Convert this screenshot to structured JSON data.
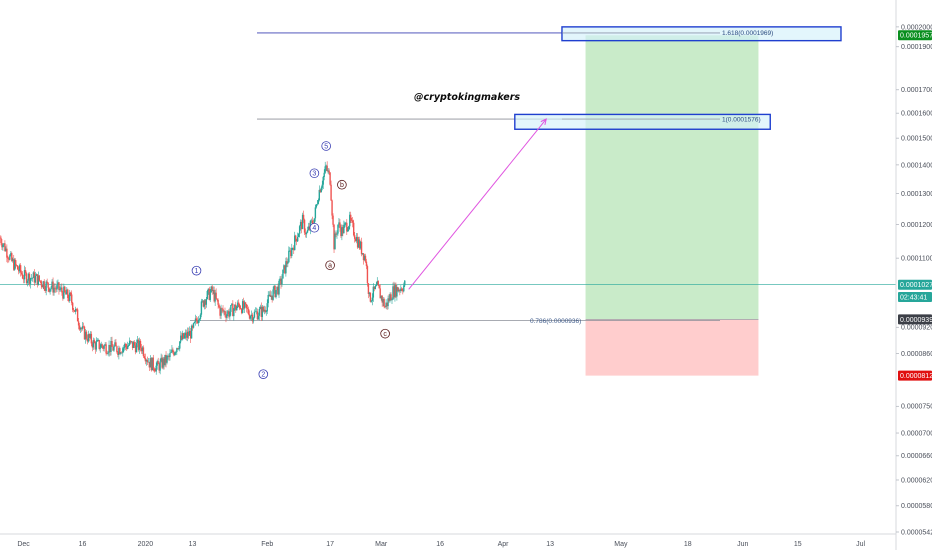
{
  "watermark": "@cryptokingmakers",
  "colors": {
    "up": "#26a69a",
    "down": "#ef5350",
    "profit_zone": "#c9ebc9",
    "loss_zone": "#ffcdcd",
    "fib_box_border": "#1f3fcf",
    "fib_box_fill": "#d4f1fb",
    "arrow": "#e055e0",
    "wave_impulse": "#3a3fb3",
    "wave_corrective": "#5a1a1a",
    "badge_green": "#0a8f1f",
    "badge_teal": "#26a69a",
    "badge_dark": "#3c3f47",
    "badge_red": "#e01010",
    "axis_line": "#d7d9de"
  },
  "chart_data": {
    "type": "candlestick",
    "y_scale": "log",
    "y_range": [
      5.42e-05,
      0.00021
    ],
    "x_range": [
      "2019-11-25",
      "2020-07-10"
    ],
    "price_ticks": [
      "0.0002000",
      "0.0001900",
      "0.0001700",
      "0.0001600",
      "0.0001500",
      "0.0001400",
      "0.0001300",
      "0.0001200",
      "0.0001100",
      "0.0000920",
      "0.0000860",
      "0.0000750",
      "0.0000700",
      "0.0000660",
      "0.0000620",
      "0.0000580",
      "0.0000542"
    ],
    "time_ticks": [
      {
        "label": "Dec",
        "date": "2019-12-01"
      },
      {
        "label": "16",
        "date": "2019-12-16"
      },
      {
        "label": "2020",
        "date": "2020-01-01"
      },
      {
        "label": "13",
        "date": "2020-01-13"
      },
      {
        "label": "Feb",
        "date": "2020-02-01"
      },
      {
        "label": "17",
        "date": "2020-02-17"
      },
      {
        "label": "Mar",
        "date": "2020-03-01"
      },
      {
        "label": "16",
        "date": "2020-03-16"
      },
      {
        "label": "Apr",
        "date": "2020-04-01"
      },
      {
        "label": "13",
        "date": "2020-04-13"
      },
      {
        "label": "May",
        "date": "2020-05-01"
      },
      {
        "label": "18",
        "date": "2020-05-18"
      },
      {
        "label": "Jun",
        "date": "2020-06-01"
      },
      {
        "label": "15",
        "date": "2020-06-15"
      },
      {
        "label": "Jul",
        "date": "2020-07-01"
      }
    ],
    "price_path": [
      [
        "2019-11-25",
        0.000116
      ],
      [
        "2019-11-28",
        0.000109
      ],
      [
        "2019-12-01",
        0.000105
      ],
      [
        "2019-12-04",
        0.0001045
      ],
      [
        "2019-12-07",
        0.0001025
      ],
      [
        "2019-12-10",
        0.0001015
      ],
      [
        "2019-12-13",
        9.9e-05
      ],
      [
        "2019-12-16",
        9.1e-05
      ],
      [
        "2019-12-19",
        8.8e-05
      ],
      [
        "2019-12-22",
        8.75e-05
      ],
      [
        "2019-12-25",
        8.7e-05
      ],
      [
        "2019-12-28",
        8.8e-05
      ],
      [
        "2019-12-31",
        8.75e-05
      ],
      [
        "2020-01-02",
        8.4e-05
      ],
      [
        "2020-01-04",
        8.3e-05
      ],
      [
        "2020-01-07",
        8.5e-05
      ],
      [
        "2020-01-10",
        8.9e-05
      ],
      [
        "2020-01-13",
        9.1e-05
      ],
      [
        "2020-01-16",
        9.9e-05
      ],
      [
        "2020-01-18",
        0.000101
      ],
      [
        "2020-01-20",
        9.6e-05
      ],
      [
        "2020-01-22",
        9.55e-05
      ],
      [
        "2020-01-25",
        9.75e-05
      ],
      [
        "2020-01-28",
        9.5e-05
      ],
      [
        "2020-01-31",
        9.6e-05
      ],
      [
        "2020-02-02",
        0.0001
      ],
      [
        "2020-02-04",
        0.000102
      ],
      [
        "2020-02-06",
        0.000109
      ],
      [
        "2020-02-08",
        0.000115
      ],
      [
        "2020-02-10",
        0.000121
      ],
      [
        "2020-02-11",
        0.000117
      ],
      [
        "2020-02-13",
        0.000122
      ],
      [
        "2020-02-14",
        0.00013
      ],
      [
        "2020-02-16",
        0.000139
      ],
      [
        "2020-02-17",
        0.000135
      ],
      [
        "2020-02-18",
        0.000114
      ],
      [
        "2020-02-19",
        0.00012
      ],
      [
        "2020-02-20",
        0.000118
      ],
      [
        "2020-02-22",
        0.000121
      ],
      [
        "2020-02-24",
        0.000115
      ],
      [
        "2020-02-26",
        0.00011
      ],
      [
        "2020-02-27",
        9.9e-05
      ],
      [
        "2020-02-29",
        0.000102
      ],
      [
        "2020-03-02",
        9.7e-05
      ],
      [
        "2020-03-04",
        0.000101
      ],
      [
        "2020-03-06",
        0.000102
      ],
      [
        "2020-03-07",
        0.0001027
      ]
    ],
    "fib_levels": [
      {
        "label": "1.618(0.0001969)",
        "price": 0.0001969
      },
      {
        "label": "1(0.0001576)",
        "price": 0.0001576
      },
      {
        "label": "0.786(0.0000936)",
        "price": 9.36e-05
      }
    ],
    "fib_boxes": [
      {
        "from": "2020-04-16",
        "to": "2020-06-26",
        "top": 0.0002,
        "bottom": 0.000193
      },
      {
        "from": "2020-04-04",
        "to": "2020-06-08",
        "top": 0.0001595,
        "bottom": 0.0001535
      }
    ],
    "position": {
      "from": "2020-04-22",
      "to": "2020-06-05",
      "entry": 9.39e-05,
      "target": 0.0001957,
      "stop": 8.12e-05
    },
    "projection_arrow": {
      "from": [
        "2020-03-08",
        0.0001015
      ],
      "to": [
        "2020-04-12",
        0.0001576
      ]
    },
    "current_price_line": 0.0001027,
    "wave_labels": [
      {
        "text": "1",
        "date": "2020-01-14",
        "price": 0.0001065,
        "kind": "impulse"
      },
      {
        "text": "2",
        "date": "2020-01-31",
        "price": 8.15e-05,
        "kind": "impulse"
      },
      {
        "text": "3",
        "date": "2020-02-13",
        "price": 0.000137,
        "kind": "impulse"
      },
      {
        "text": "4",
        "date": "2020-02-13",
        "price": 0.000119,
        "kind": "impulse"
      },
      {
        "text": "5",
        "date": "2020-02-16",
        "price": 0.000147,
        "kind": "impulse"
      },
      {
        "text": "a",
        "date": "2020-02-17",
        "price": 0.000108,
        "kind": "corrective"
      },
      {
        "text": "b",
        "date": "2020-02-20",
        "price": 0.000133,
        "kind": "corrective"
      },
      {
        "text": "c",
        "date": "2020-03-02",
        "price": 9.05e-05,
        "kind": "corrective"
      }
    ],
    "price_badges": [
      {
        "label": "0.0001957",
        "color": "#0a8f1f",
        "price": 0.0001957
      },
      {
        "label": "0.0001027",
        "color": "#26a69a",
        "price": 0.0001027
      },
      {
        "label": "02:43:41",
        "color": "#26a69a",
        "price": 9.95e-05
      },
      {
        "label": "0.0000939",
        "color": "#3c3f47",
        "price": 9.39e-05
      },
      {
        "label": "0.0000812",
        "color": "#e01010",
        "price": 8.12e-05
      }
    ]
  }
}
